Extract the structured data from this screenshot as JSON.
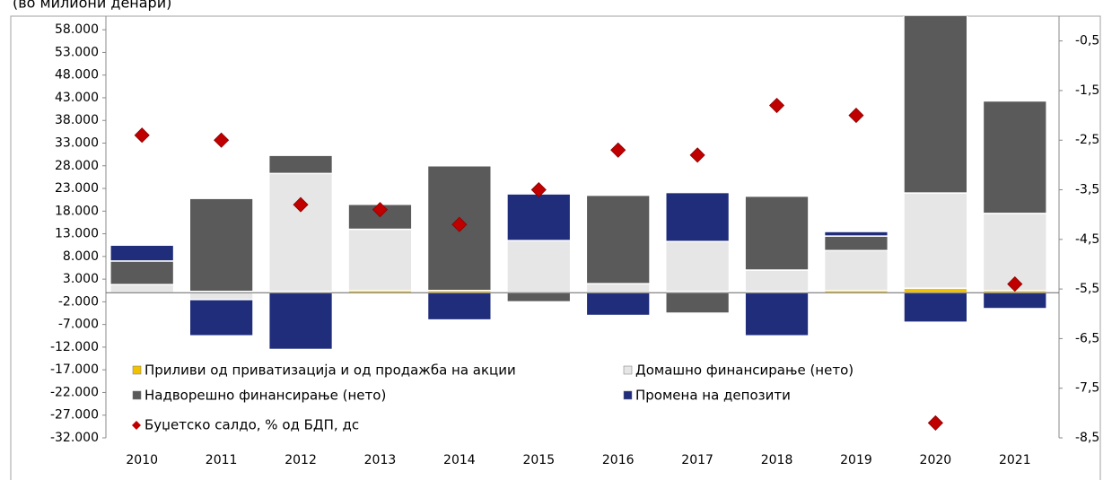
{
  "chart_data": {
    "type": "bar",
    "stacked": true,
    "title": "(во милиони денари)",
    "categories": [
      "2010",
      "2011",
      "2012",
      "2013",
      "2014",
      "2015",
      "2016",
      "2017",
      "2018",
      "2019",
      "2020",
      "2021"
    ],
    "series": [
      {
        "name": "Приливи од приватизација и од продажба на акции",
        "color": "#f2c200",
        "values": [
          0,
          300,
          300,
          500,
          500,
          0,
          0,
          300,
          300,
          500,
          1000,
          500
        ]
      },
      {
        "name": "Домашно финансирање (нето)",
        "color": "#e6e6e6",
        "values": [
          1800,
          -1500,
          26000,
          13500,
          0,
          11500,
          2000,
          11000,
          4700,
          8800,
          21000,
          17000
        ]
      },
      {
        "name": "Надворешно финансирање (нето)",
        "color": "#5a5a5a",
        "values": [
          5200,
          20500,
          4000,
          5500,
          27500,
          -2000,
          19500,
          -4500,
          16300,
          3200,
          40000,
          24800
        ]
      },
      {
        "name": "Промена на депозити",
        "color": "#1f2d7b",
        "values": [
          3500,
          -8000,
          -12500,
          0,
          -6000,
          10300,
          -5000,
          10800,
          -9500,
          1000,
          -6500,
          -3500
        ]
      },
      {
        "name": "Буџетско салдо, % од БДП, дс",
        "color": "#c00000",
        "type": "scatter",
        "axis": "y2",
        "values": [
          -2.4,
          -2.5,
          -3.8,
          -3.9,
          -4.2,
          -3.5,
          -2.7,
          -2.8,
          -1.8,
          -2.0,
          -8.2,
          -5.4
        ]
      }
    ],
    "ylim": [
      -32000,
      61000
    ],
    "yticks": [
      {
        "value": 58000,
        "label": "58.000"
      },
      {
        "value": 53000,
        "label": "53.000"
      },
      {
        "value": 48000,
        "label": "48.000"
      },
      {
        "value": 43000,
        "label": "43.000"
      },
      {
        "value": 38000,
        "label": "38.000"
      },
      {
        "value": 33000,
        "label": "33.000"
      },
      {
        "value": 28000,
        "label": "28.000"
      },
      {
        "value": 23000,
        "label": "23.000"
      },
      {
        "value": 18000,
        "label": "18.000"
      },
      {
        "value": 13000,
        "label": "13.000"
      },
      {
        "value": 8000,
        "label": "8.000"
      },
      {
        "value": 3000,
        "label": "3.000"
      },
      {
        "value": -2000,
        "label": "-2.000"
      },
      {
        "value": -7000,
        "label": "-7.000"
      },
      {
        "value": -12000,
        "label": "-12.000"
      },
      {
        "value": -17000,
        "label": "-17.000"
      },
      {
        "value": -22000,
        "label": "-22.000"
      },
      {
        "value": -27000,
        "label": "-27.000"
      },
      {
        "value": -32000,
        "label": "-32.000"
      }
    ],
    "y2lim": [
      -8.5,
      0
    ],
    "y2ticks": [
      {
        "value": -0.5,
        "label": "-0,5"
      },
      {
        "value": -1.5,
        "label": "-1,5"
      },
      {
        "value": -2.5,
        "label": "-2,5"
      },
      {
        "value": -3.5,
        "label": "-3,5"
      },
      {
        "value": -4.5,
        "label": "-4,5"
      },
      {
        "value": -5.5,
        "label": "-5,5"
      },
      {
        "value": -6.5,
        "label": "-6,5"
      },
      {
        "value": -7.5,
        "label": "-7,5"
      },
      {
        "value": -8.5,
        "label": "-8,5"
      }
    ],
    "legend": "bottom-left"
  }
}
